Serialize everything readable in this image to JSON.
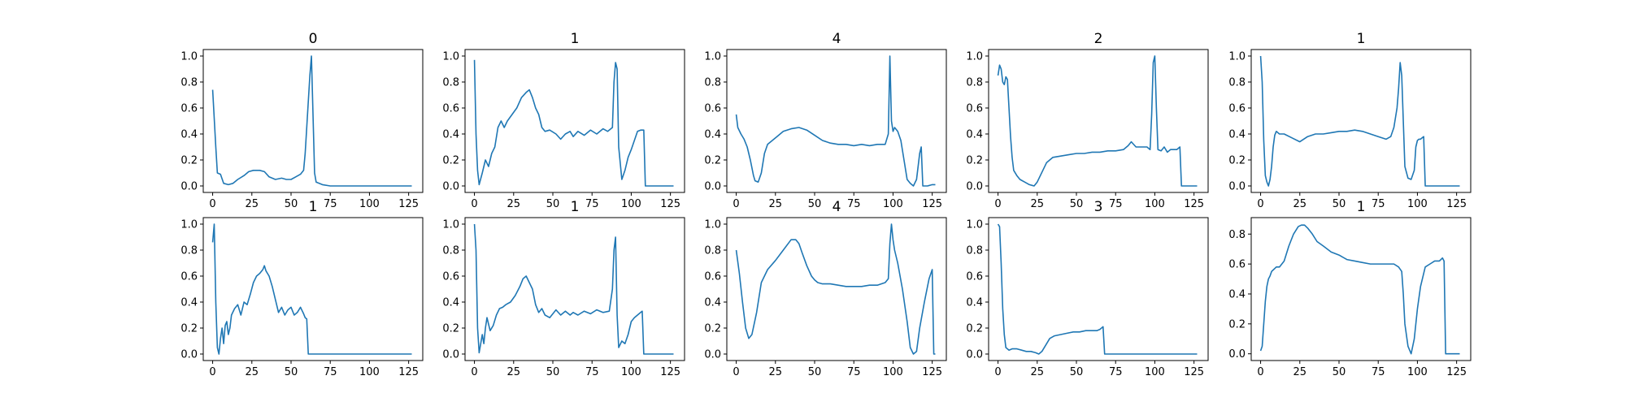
{
  "figure": {
    "line_color": "#1f77b4",
    "axes_color": "#000000",
    "background": "#ffffff"
  },
  "chart_data": [
    {
      "type": "line",
      "title": "0",
      "xlim": [
        -6,
        134
      ],
      "ylim": [
        -0.05,
        1.05
      ],
      "xticks": [
        0,
        25,
        50,
        75,
        100,
        125
      ],
      "yticks": [
        0.0,
        0.2,
        0.4,
        0.6,
        0.8,
        1.0
      ],
      "x": [
        0,
        2,
        3,
        5,
        7,
        10,
        13,
        16,
        20,
        23,
        26,
        30,
        33,
        36,
        40,
        44,
        47,
        50,
        53,
        56,
        58,
        59,
        60,
        61,
        62,
        63,
        64,
        65,
        66,
        70,
        75,
        100,
        125,
        127
      ],
      "y": [
        0.74,
        0.3,
        0.1,
        0.09,
        0.02,
        0.01,
        0.02,
        0.05,
        0.08,
        0.11,
        0.12,
        0.12,
        0.11,
        0.07,
        0.05,
        0.06,
        0.05,
        0.05,
        0.07,
        0.09,
        0.12,
        0.25,
        0.45,
        0.65,
        0.85,
        1.0,
        0.55,
        0.1,
        0.03,
        0.01,
        0.0,
        0.0,
        0.0,
        0.0
      ]
    },
    {
      "type": "line",
      "title": "1",
      "xlim": [
        -6,
        134
      ],
      "ylim": [
        -0.05,
        1.05
      ],
      "xticks": [
        0,
        25,
        50,
        75,
        100,
        125
      ],
      "yticks": [
        0.0,
        0.2,
        0.4,
        0.6,
        0.8,
        1.0
      ],
      "x": [
        0,
        1,
        2,
        3,
        5,
        7,
        9,
        11,
        13,
        15,
        17,
        19,
        21,
        24,
        27,
        30,
        33,
        35,
        37,
        39,
        41,
        43,
        45,
        48,
        52,
        55,
        58,
        61,
        63,
        66,
        70,
        74,
        78,
        82,
        85,
        88,
        89,
        90,
        91,
        92,
        94,
        96,
        98,
        100,
        102,
        104,
        106,
        108,
        109,
        110,
        115,
        120,
        125,
        127
      ],
      "y": [
        0.97,
        0.4,
        0.12,
        0.01,
        0.1,
        0.2,
        0.15,
        0.25,
        0.3,
        0.45,
        0.5,
        0.45,
        0.5,
        0.55,
        0.6,
        0.68,
        0.72,
        0.74,
        0.68,
        0.6,
        0.55,
        0.45,
        0.42,
        0.43,
        0.4,
        0.36,
        0.4,
        0.42,
        0.38,
        0.42,
        0.39,
        0.43,
        0.4,
        0.44,
        0.42,
        0.45,
        0.8,
        0.95,
        0.9,
        0.3,
        0.05,
        0.12,
        0.22,
        0.28,
        0.35,
        0.42,
        0.43,
        0.43,
        0.0,
        0.0,
        0.0,
        0.0,
        0.0,
        0.0
      ]
    },
    {
      "type": "line",
      "title": "4",
      "xlim": [
        -6,
        134
      ],
      "ylim": [
        -0.05,
        1.05
      ],
      "xticks": [
        0,
        25,
        50,
        75,
        100,
        125
      ],
      "yticks": [
        0.0,
        0.2,
        0.4,
        0.6,
        0.8,
        1.0
      ],
      "x": [
        0,
        1,
        3,
        5,
        7,
        9,
        11,
        12,
        14,
        16,
        18,
        20,
        23,
        26,
        30,
        35,
        40,
        45,
        50,
        55,
        60,
        65,
        70,
        75,
        80,
        85,
        90,
        95,
        97,
        98,
        99,
        100,
        101,
        103,
        105,
        107,
        109,
        111,
        113,
        115,
        117,
        118,
        119,
        120,
        122,
        125,
        127
      ],
      "y": [
        0.55,
        0.45,
        0.4,
        0.36,
        0.3,
        0.2,
        0.08,
        0.04,
        0.03,
        0.1,
        0.25,
        0.32,
        0.35,
        0.38,
        0.42,
        0.44,
        0.45,
        0.43,
        0.39,
        0.35,
        0.33,
        0.32,
        0.32,
        0.31,
        0.32,
        0.31,
        0.32,
        0.32,
        0.4,
        1.0,
        0.5,
        0.42,
        0.45,
        0.42,
        0.35,
        0.2,
        0.05,
        0.02,
        0.0,
        0.05,
        0.25,
        0.3,
        0.0,
        0.0,
        0.0,
        0.01,
        0.01
      ]
    },
    {
      "type": "line",
      "title": "2",
      "xlim": [
        -6,
        134
      ],
      "ylim": [
        -0.05,
        1.05
      ],
      "xticks": [
        0,
        25,
        50,
        75,
        100,
        125
      ],
      "yticks": [
        0.0,
        0.2,
        0.4,
        0.6,
        0.8,
        1.0
      ],
      "x": [
        0,
        1,
        2,
        3,
        4,
        5,
        6,
        7,
        8,
        9,
        10,
        12,
        14,
        17,
        20,
        23,
        25,
        27,
        29,
        31,
        33,
        35,
        40,
        45,
        50,
        55,
        60,
        65,
        70,
        75,
        80,
        83,
        85,
        88,
        92,
        95,
        97,
        98,
        99,
        100,
        101,
        102,
        104,
        106,
        108,
        110,
        112,
        114,
        116,
        117,
        118,
        120,
        125,
        127
      ],
      "y": [
        0.85,
        0.93,
        0.9,
        0.8,
        0.78,
        0.84,
        0.82,
        0.6,
        0.38,
        0.22,
        0.12,
        0.08,
        0.05,
        0.03,
        0.01,
        0.0,
        0.03,
        0.08,
        0.13,
        0.18,
        0.2,
        0.22,
        0.23,
        0.24,
        0.25,
        0.25,
        0.26,
        0.26,
        0.27,
        0.27,
        0.28,
        0.31,
        0.34,
        0.3,
        0.3,
        0.3,
        0.28,
        0.55,
        0.95,
        1.0,
        0.6,
        0.28,
        0.27,
        0.3,
        0.26,
        0.28,
        0.28,
        0.28,
        0.3,
        0.0,
        0.0,
        0.0,
        0.0,
        0.0
      ]
    },
    {
      "type": "line",
      "title": "1",
      "xlim": [
        -6,
        134
      ],
      "ylim": [
        -0.05,
        1.05
      ],
      "xticks": [
        0,
        25,
        50,
        75,
        100,
        125
      ],
      "yticks": [
        0.0,
        0.2,
        0.4,
        0.6,
        0.8,
        1.0
      ],
      "x": [
        0,
        1,
        2,
        3,
        4,
        5,
        6,
        7,
        8,
        9,
        10,
        12,
        15,
        20,
        25,
        30,
        35,
        40,
        45,
        50,
        55,
        60,
        65,
        70,
        75,
        80,
        83,
        85,
        87,
        88,
        89,
        90,
        91,
        92,
        94,
        96,
        98,
        99,
        100,
        101,
        102,
        103,
        104,
        105,
        106,
        110,
        120,
        127
      ],
      "y": [
        1.0,
        0.8,
        0.35,
        0.08,
        0.03,
        0.0,
        0.05,
        0.15,
        0.3,
        0.39,
        0.42,
        0.4,
        0.4,
        0.37,
        0.34,
        0.38,
        0.4,
        0.4,
        0.41,
        0.42,
        0.42,
        0.43,
        0.42,
        0.4,
        0.38,
        0.36,
        0.38,
        0.45,
        0.6,
        0.75,
        0.95,
        0.85,
        0.5,
        0.15,
        0.06,
        0.05,
        0.12,
        0.3,
        0.35,
        0.36,
        0.36,
        0.37,
        0.38,
        0.0,
        0.0,
        0.0,
        0.0,
        0.0
      ]
    },
    {
      "type": "line",
      "title": "1",
      "xlim": [
        -6,
        134
      ],
      "ylim": [
        -0.05,
        1.05
      ],
      "xticks": [
        0,
        25,
        50,
        75,
        100,
        125
      ],
      "yticks": [
        0.0,
        0.2,
        0.4,
        0.6,
        0.8,
        1.0
      ],
      "x": [
        0,
        1,
        2,
        3,
        4,
        5,
        6,
        7,
        8,
        9,
        10,
        11,
        12,
        14,
        16,
        18,
        20,
        22,
        24,
        26,
        28,
        30,
        32,
        33,
        34,
        36,
        38,
        40,
        42,
        44,
        46,
        48,
        50,
        52,
        54,
        56,
        58,
        59,
        60,
        61,
        65,
        75,
        100,
        125,
        127
      ],
      "y": [
        0.86,
        1.0,
        0.4,
        0.05,
        0.0,
        0.12,
        0.2,
        0.08,
        0.22,
        0.25,
        0.15,
        0.2,
        0.3,
        0.35,
        0.38,
        0.3,
        0.4,
        0.38,
        0.46,
        0.55,
        0.6,
        0.62,
        0.65,
        0.68,
        0.64,
        0.6,
        0.52,
        0.42,
        0.32,
        0.36,
        0.3,
        0.34,
        0.36,
        0.3,
        0.32,
        0.36,
        0.31,
        0.28,
        0.27,
        0.0,
        0.0,
        0.0,
        0.0,
        0.0,
        0.0
      ]
    },
    {
      "type": "line",
      "title": "1",
      "xlim": [
        -6,
        134
      ],
      "ylim": [
        -0.05,
        1.05
      ],
      "xticks": [
        0,
        25,
        50,
        75,
        100,
        125
      ],
      "yticks": [
        0.0,
        0.2,
        0.4,
        0.6,
        0.8,
        1.0
      ],
      "x": [
        0,
        1,
        2,
        3,
        4,
        5,
        6,
        7,
        8,
        10,
        12,
        14,
        16,
        18,
        20,
        23,
        26,
        29,
        31,
        33,
        35,
        37,
        39,
        41,
        43,
        45,
        48,
        52,
        55,
        58,
        61,
        63,
        66,
        70,
        74,
        78,
        82,
        86,
        88,
        89,
        90,
        91,
        92,
        94,
        96,
        98,
        100,
        102,
        104,
        106,
        107,
        108,
        110,
        120,
        127
      ],
      "y": [
        1.0,
        0.8,
        0.2,
        0.01,
        0.08,
        0.15,
        0.08,
        0.2,
        0.28,
        0.18,
        0.22,
        0.3,
        0.35,
        0.36,
        0.38,
        0.4,
        0.45,
        0.52,
        0.58,
        0.6,
        0.55,
        0.5,
        0.38,
        0.32,
        0.35,
        0.3,
        0.28,
        0.34,
        0.3,
        0.33,
        0.3,
        0.32,
        0.3,
        0.33,
        0.31,
        0.34,
        0.32,
        0.33,
        0.5,
        0.8,
        0.9,
        0.3,
        0.05,
        0.1,
        0.08,
        0.15,
        0.25,
        0.28,
        0.3,
        0.32,
        0.33,
        0.0,
        0.0,
        0.0,
        0.0
      ]
    },
    {
      "type": "line",
      "title": "4",
      "xlim": [
        -6,
        134
      ],
      "ylim": [
        -0.05,
        1.05
      ],
      "xticks": [
        0,
        25,
        50,
        75,
        100,
        125
      ],
      "yticks": [
        0.0,
        0.2,
        0.4,
        0.6,
        0.8,
        1.0
      ],
      "x": [
        0,
        2,
        4,
        6,
        8,
        10,
        13,
        16,
        20,
        25,
        30,
        35,
        38,
        40,
        42,
        45,
        48,
        50,
        52,
        55,
        60,
        65,
        70,
        75,
        80,
        85,
        90,
        95,
        97,
        98,
        99,
        100,
        101,
        103,
        106,
        109,
        111,
        113,
        115,
        117,
        120,
        123,
        125,
        126,
        127
      ],
      "y": [
        0.8,
        0.62,
        0.4,
        0.2,
        0.12,
        0.15,
        0.32,
        0.55,
        0.65,
        0.72,
        0.8,
        0.88,
        0.88,
        0.85,
        0.78,
        0.68,
        0.6,
        0.57,
        0.55,
        0.54,
        0.54,
        0.53,
        0.52,
        0.52,
        0.52,
        0.53,
        0.53,
        0.55,
        0.58,
        0.85,
        1.0,
        0.88,
        0.8,
        0.7,
        0.5,
        0.25,
        0.05,
        0.0,
        0.02,
        0.2,
        0.4,
        0.58,
        0.65,
        0.0,
        0.0
      ]
    },
    {
      "type": "line",
      "title": "3",
      "xlim": [
        -6,
        134
      ],
      "ylim": [
        -0.05,
        1.05
      ],
      "xticks": [
        0,
        25,
        50,
        75,
        100,
        125
      ],
      "yticks": [
        0.0,
        0.2,
        0.4,
        0.6,
        0.8,
        1.0
      ],
      "x": [
        0,
        1,
        2,
        3,
        4,
        5,
        6,
        7,
        9,
        12,
        15,
        18,
        21,
        24,
        26,
        28,
        30,
        33,
        36,
        40,
        44,
        48,
        52,
        56,
        60,
        63,
        65,
        66,
        67,
        68,
        70,
        75,
        100,
        125,
        127
      ],
      "y": [
        1.0,
        0.98,
        0.7,
        0.35,
        0.15,
        0.05,
        0.04,
        0.03,
        0.04,
        0.04,
        0.03,
        0.02,
        0.02,
        0.01,
        0.0,
        0.02,
        0.06,
        0.12,
        0.14,
        0.15,
        0.16,
        0.17,
        0.17,
        0.18,
        0.18,
        0.18,
        0.19,
        0.2,
        0.21,
        0.0,
        0.0,
        0.0,
        0.0,
        0.0,
        0.0
      ]
    },
    {
      "type": "line",
      "title": "1",
      "xlim": [
        -6,
        134
      ],
      "ylim": [
        -0.045,
        0.91
      ],
      "xticks": [
        0,
        25,
        50,
        75,
        100,
        125
      ],
      "yticks": [
        0.0,
        0.2,
        0.4,
        0.6,
        0.8
      ],
      "x": [
        0,
        1,
        2,
        3,
        4,
        5,
        6,
        7,
        8,
        9,
        10,
        12,
        15,
        18,
        21,
        24,
        26,
        28,
        30,
        33,
        36,
        40,
        45,
        50,
        55,
        60,
        65,
        70,
        75,
        80,
        85,
        88,
        90,
        91,
        92,
        94,
        96,
        98,
        100,
        102,
        105,
        108,
        111,
        114,
        116,
        117,
        118,
        120,
        125,
        127
      ],
      "y": [
        0.02,
        0.05,
        0.2,
        0.35,
        0.45,
        0.5,
        0.52,
        0.55,
        0.56,
        0.57,
        0.58,
        0.58,
        0.62,
        0.72,
        0.8,
        0.85,
        0.86,
        0.86,
        0.84,
        0.8,
        0.75,
        0.72,
        0.68,
        0.66,
        0.63,
        0.62,
        0.61,
        0.6,
        0.6,
        0.6,
        0.6,
        0.58,
        0.55,
        0.4,
        0.2,
        0.05,
        0.0,
        0.1,
        0.3,
        0.45,
        0.58,
        0.6,
        0.62,
        0.62,
        0.64,
        0.62,
        0.0,
        0.0,
        0.0,
        0.0
      ]
    }
  ]
}
